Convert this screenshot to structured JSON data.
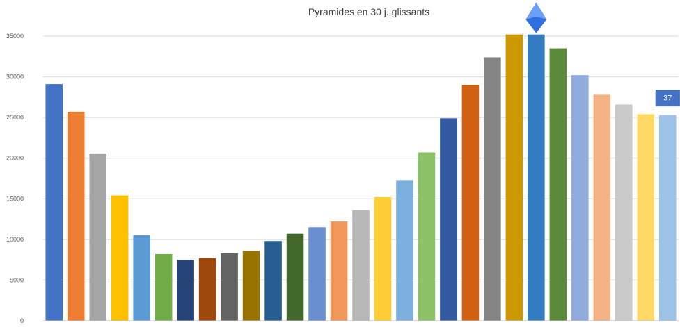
{
  "chart_data": {
    "type": "bar",
    "title": "Pyramides en 30 j. glissants",
    "xlabel": "",
    "ylabel": "",
    "ylim": [
      0,
      35000
    ],
    "yticks": [
      0,
      5000,
      10000,
      15000,
      20000,
      25000,
      30000,
      35000
    ],
    "grid": true,
    "legend": "none",
    "values": [
      29100,
      25700,
      20500,
      15400,
      10500,
      8200,
      7500,
      7700,
      8300,
      8600,
      9800,
      10700,
      11500,
      12200,
      13600,
      15200,
      17300,
      20700,
      24900,
      29000,
      32400,
      35200,
      35200,
      33500,
      30200,
      27800,
      26600,
      25400,
      25300
    ],
    "colors": [
      "#4472c4",
      "#ed7d31",
      "#a5a5a5",
      "#ffc000",
      "#5b9bd5",
      "#70ad47",
      "#264478",
      "#9e480e",
      "#636363",
      "#997300",
      "#255e91",
      "#43682b",
      "#698ed0",
      "#f1975a",
      "#b7b7b7",
      "#ffcd33",
      "#7cafdd",
      "#8cc168",
      "#335aa1",
      "#d26012",
      "#848484",
      "#cc9a00",
      "#327dc2",
      "#5a8a39",
      "#8faadc",
      "#f4b183",
      "#c9c9c9",
      "#ffd966",
      "#9dc3e6"
    ],
    "annotation": {
      "label": "37",
      "bar_index": 28,
      "color": "#4472c4"
    },
    "marker": {
      "shape": "diamond",
      "bar_index": 22,
      "color": "#2f6fe0"
    }
  }
}
